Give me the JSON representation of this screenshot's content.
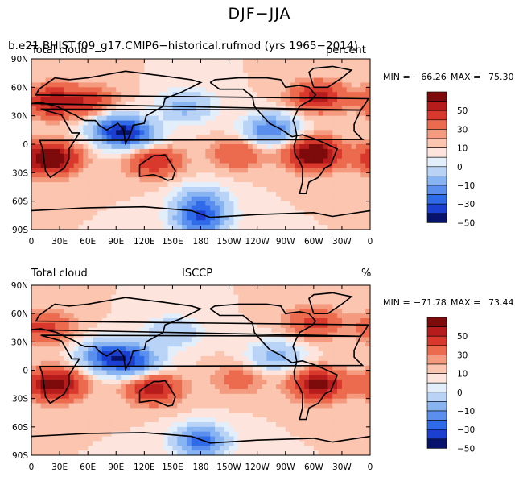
{
  "title": "DJF−JJA",
  "colorbar": {
    "colors": [
      "#08136b",
      "#1a3fd1",
      "#2f6ae8",
      "#5b8fee",
      "#89b4f2",
      "#b9d3f7",
      "#e3eefb",
      "#fde5dd",
      "#fbc5b0",
      "#f49a7f",
      "#ec6b4e",
      "#d8392c",
      "#b51c1b",
      "#7d0b0c"
    ],
    "tick_labels": [
      "50",
      "30",
      "10",
      "0",
      "−10",
      "−30",
      "−50"
    ]
  },
  "axes": {
    "lon_ticks": [
      "0",
      "30E",
      "60E",
      "90E",
      "120E",
      "150E",
      "180",
      "150W",
      "120W",
      "90W",
      "60W",
      "30W",
      "0"
    ],
    "lat_ticks": [
      "90N",
      "60N",
      "30N",
      "0",
      "30S",
      "60S",
      "90S"
    ]
  },
  "panels": [
    {
      "id": "model",
      "left_title": "Total cloud",
      "overlay_title": "b.e21.BHIST.f09_g17.CMIP6−historical.rufmod (yrs 1965−2014)",
      "center_title": "",
      "units": "percent",
      "min_label": "MIN =",
      "min": "−66.26",
      "max_label": "MAX =",
      "max": "75.30"
    },
    {
      "id": "obs",
      "left_title": "Total cloud",
      "overlay_title": "",
      "center_title": "ISCCP",
      "units": "%",
      "min_label": "MIN =",
      "min": "−71.78",
      "max_label": "MAX =",
      "max": "73.44"
    }
  ],
  "chart_data": [
    {
      "type": "heatmap",
      "title": "DJF−JJA",
      "subtitle": "b.e21.BHIST.f09_g17.CMIP6−historical.rufmod (yrs 1965−2014)",
      "variable": "Total cloud",
      "units": "percent",
      "x": {
        "range": [
          0,
          360
        ],
        "ticks": [
          "0",
          "30E",
          "60E",
          "90E",
          "120E",
          "150E",
          "180",
          "150W",
          "120W",
          "90W",
          "60W",
          "30W",
          "0"
        ]
      },
      "y": {
        "range": [
          -90,
          90
        ],
        "ticks": [
          "90N",
          "60N",
          "30N",
          "0",
          "30S",
          "60S",
          "90S"
        ]
      },
      "min": -66.26,
      "max": 75.3,
      "contour_levels": [
        -60,
        -50,
        -40,
        -30,
        -20,
        -10,
        -5,
        0,
        5,
        10,
        20,
        30,
        40,
        50,
        60
      ],
      "colorbar_labels": [
        50,
        30,
        10,
        0,
        -10,
        -30,
        -50
      ],
      "regions": [
        {
          "lon": 20,
          "lat": -15,
          "value": 55
        },
        {
          "lon": 300,
          "lat": -10,
          "value": 55
        },
        {
          "lon": 130,
          "lat": -18,
          "value": 30
        },
        {
          "lon": 90,
          "lat": 15,
          "value": -45
        },
        {
          "lon": 110,
          "lat": 10,
          "value": -30
        },
        {
          "lon": 20,
          "lat": 45,
          "value": 35
        },
        {
          "lon": 60,
          "lat": 45,
          "value": 25
        },
        {
          "lon": 165,
          "lat": 40,
          "value": -25
        },
        {
          "lon": 255,
          "lat": 15,
          "value": -40
        },
        {
          "lon": 220,
          "lat": -10,
          "value": 20
        },
        {
          "lon": 180,
          "lat": -60,
          "value": -30
        },
        {
          "lon": 180,
          "lat": -80,
          "value": -45
        },
        {
          "lon": 305,
          "lat": 50,
          "value": 35
        }
      ]
    },
    {
      "type": "heatmap",
      "title": "DJF−JJA",
      "subtitle": "ISCCP",
      "variable": "Total cloud",
      "units": "%",
      "x": {
        "range": [
          0,
          360
        ],
        "ticks": [
          "0",
          "30E",
          "60E",
          "90E",
          "120E",
          "150E",
          "180",
          "150W",
          "120W",
          "90W",
          "60W",
          "30W",
          "0"
        ]
      },
      "y": {
        "range": [
          -90,
          90
        ],
        "ticks": [
          "90N",
          "60N",
          "30N",
          "0",
          "30S",
          "60S",
          "90S"
        ]
      },
      "min": -71.78,
      "max": 73.44,
      "contour_levels": [
        -60,
        -50,
        -40,
        -30,
        -20,
        -10,
        -5,
        0,
        5,
        10,
        20,
        30,
        40,
        50,
        60
      ],
      "colorbar_labels": [
        50,
        30,
        10,
        0,
        -10,
        -30,
        -50
      ],
      "regions": [
        {
          "lon": 25,
          "lat": -15,
          "value": 50
        },
        {
          "lon": 305,
          "lat": -15,
          "value": 45
        },
        {
          "lon": 130,
          "lat": -20,
          "value": 35
        },
        {
          "lon": 80,
          "lat": 15,
          "value": -45
        },
        {
          "lon": 110,
          "lat": 10,
          "value": -40
        },
        {
          "lon": 15,
          "lat": 45,
          "value": 25
        },
        {
          "lon": 150,
          "lat": 40,
          "value": -20
        },
        {
          "lon": 260,
          "lat": 15,
          "value": -25
        },
        {
          "lon": 220,
          "lat": -10,
          "value": 15
        },
        {
          "lon": 180,
          "lat": -75,
          "value": -45
        },
        {
          "lon": 300,
          "lat": 50,
          "value": 25
        }
      ]
    }
  ]
}
